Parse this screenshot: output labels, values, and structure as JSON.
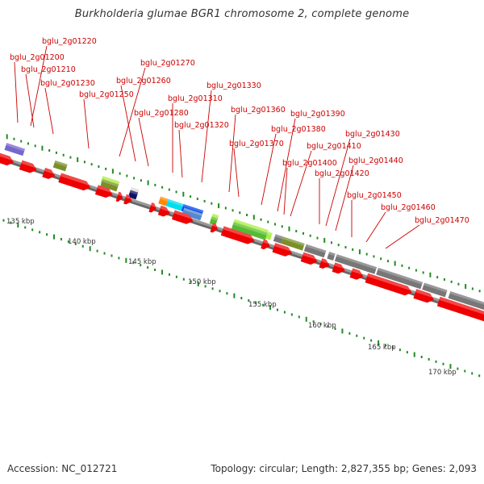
{
  "title": "Burkholderia glumae BGR1 chromosome 2, complete genome",
  "footer": {
    "accession": "Accession: NC_012721",
    "summary": "Topology: circular; Length: 2,827,355 bp; Genes: 2,093"
  },
  "colors": {
    "cds": "#ee0000",
    "pointer": "#cc0000",
    "backbone": "#777777",
    "tick": "#228b22",
    "cog_purple": "#7766cc",
    "cog_olive": "#7a8f2a",
    "cog_lime": "#aaee44",
    "cog_orange": "#ff8800",
    "cog_cyan": "#00ddee",
    "cog_blue": "#0044ee",
    "cog_steel": "#5588cc",
    "cog_navy": "#111166",
    "cog_green": "#55bb33",
    "cog_gray": "#777777"
  },
  "kbp_labels": [
    "135 kbp",
    "140 kbp",
    "145 kbp",
    "150 kbp",
    "155 kbp",
    "160 kbp",
    "165 kbp",
    "170 kbp"
  ],
  "gene_labels": [
    "bglu_2g01220",
    "bglu_2g01200",
    "bglu_2g01210",
    "bglu_2g01230",
    "bglu_2g01250",
    "bglu_2g01270",
    "bglu_2g01260",
    "bglu_2g01280",
    "bglu_2g01310",
    "bglu_2g01330",
    "bglu_2g01320",
    "bglu_2g01360",
    "bglu_2g01390",
    "bglu_2g01380",
    "bglu_2g01370",
    "bglu_2g01430",
    "bglu_2g01410",
    "bglu_2g01400",
    "bglu_2g01440",
    "bglu_2g01420",
    "bglu_2g01450",
    "bglu_2g01460",
    "bglu_2g01470"
  ]
}
